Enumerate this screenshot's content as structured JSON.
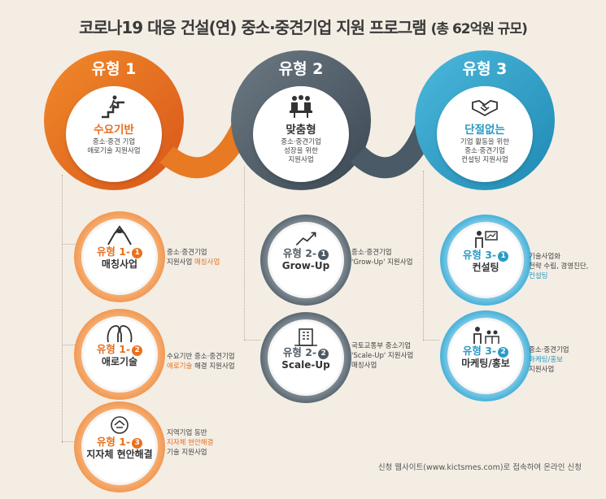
{
  "title": {
    "main": "코로나19 대응 건설(연) 중소·중견기업 지원 프로그램",
    "note": "(총 62억원 규모)"
  },
  "colors": {
    "orange": "#e8701f",
    "gray": "#4e5b66",
    "blue": "#2a9bc4"
  },
  "types": [
    {
      "label": "유형 1",
      "name": "수요기반",
      "desc": [
        "중소·중견 기업",
        "애로기술 지원사업"
      ],
      "icon": "stairs-climb-icon"
    },
    {
      "label": "유형 2",
      "name": "맞춤형",
      "desc": [
        "중소·중견기업",
        "성장을 위한",
        "지원사업"
      ],
      "icon": "meeting-icon"
    },
    {
      "label": "유형 3",
      "name": "단절없는",
      "desc": [
        "기업 활동을 위한",
        "중소·중견기업",
        "컨설팅 지원사업"
      ],
      "icon": "handshake-icon"
    }
  ],
  "programs": {
    "p1_1": {
      "code": "유형 1-",
      "num": "1",
      "name": "매칭사업",
      "icon": "arm-wrestle-icon",
      "side": [
        "중소·중견기업"
      ],
      "side2_pre": "지원사업 ",
      "side2_hl": "매칭사업"
    },
    "p1_2": {
      "code": "유형 1-",
      "num": "2",
      "name": "애로기술",
      "icon": "heads-icon",
      "side": [
        "수요기반 중소·중견기업"
      ],
      "side2_hl": "애로기술",
      "side2_post": " 해결 지원사업"
    },
    "p1_3": {
      "code": "유형 1-",
      "num": "3",
      "name": "지자체 현안해결",
      "icon": "team-hands-icon",
      "side": [
        "지역기업 동반"
      ],
      "side2_hl": "지자체 현안해결",
      "side3": "기술 지원사업"
    },
    "p2_1": {
      "code1": "유형",
      "code2": "2-",
      "num": "1",
      "name": "Grow-Up",
      "icon": "growth-icon",
      "side": [
        "중소·중견기업"
      ],
      "side2": "'Grow-Up' 지원사업"
    },
    "p2_2": {
      "code": "유형 2-",
      "num": "2",
      "name": "Scale-Up",
      "icon": "building-icon",
      "side": [
        "국토교통부 중소기업"
      ],
      "side2": "'Scale-Up' 지원사업",
      "side3": "매칭사업"
    },
    "p3_1": {
      "code": "유형 3-",
      "num": "1",
      "name": "컨설팅",
      "icon": "consulting-icon",
      "side": [
        "기술사업화",
        "전략 수립, 경영진단,"
      ],
      "side_hl": "컨설팅"
    },
    "p3_2": {
      "code": "유형 3-",
      "num": "2",
      "name": "마케팅/홍보",
      "icon": "presentation-icon",
      "side": [
        "중소·중견기업"
      ],
      "side_hl": "마케팅/홍보",
      "side3": "지원사업"
    }
  },
  "footer": "신청 웹사이트(www.kictsmes.com)로 접속하여 온라인 신청"
}
